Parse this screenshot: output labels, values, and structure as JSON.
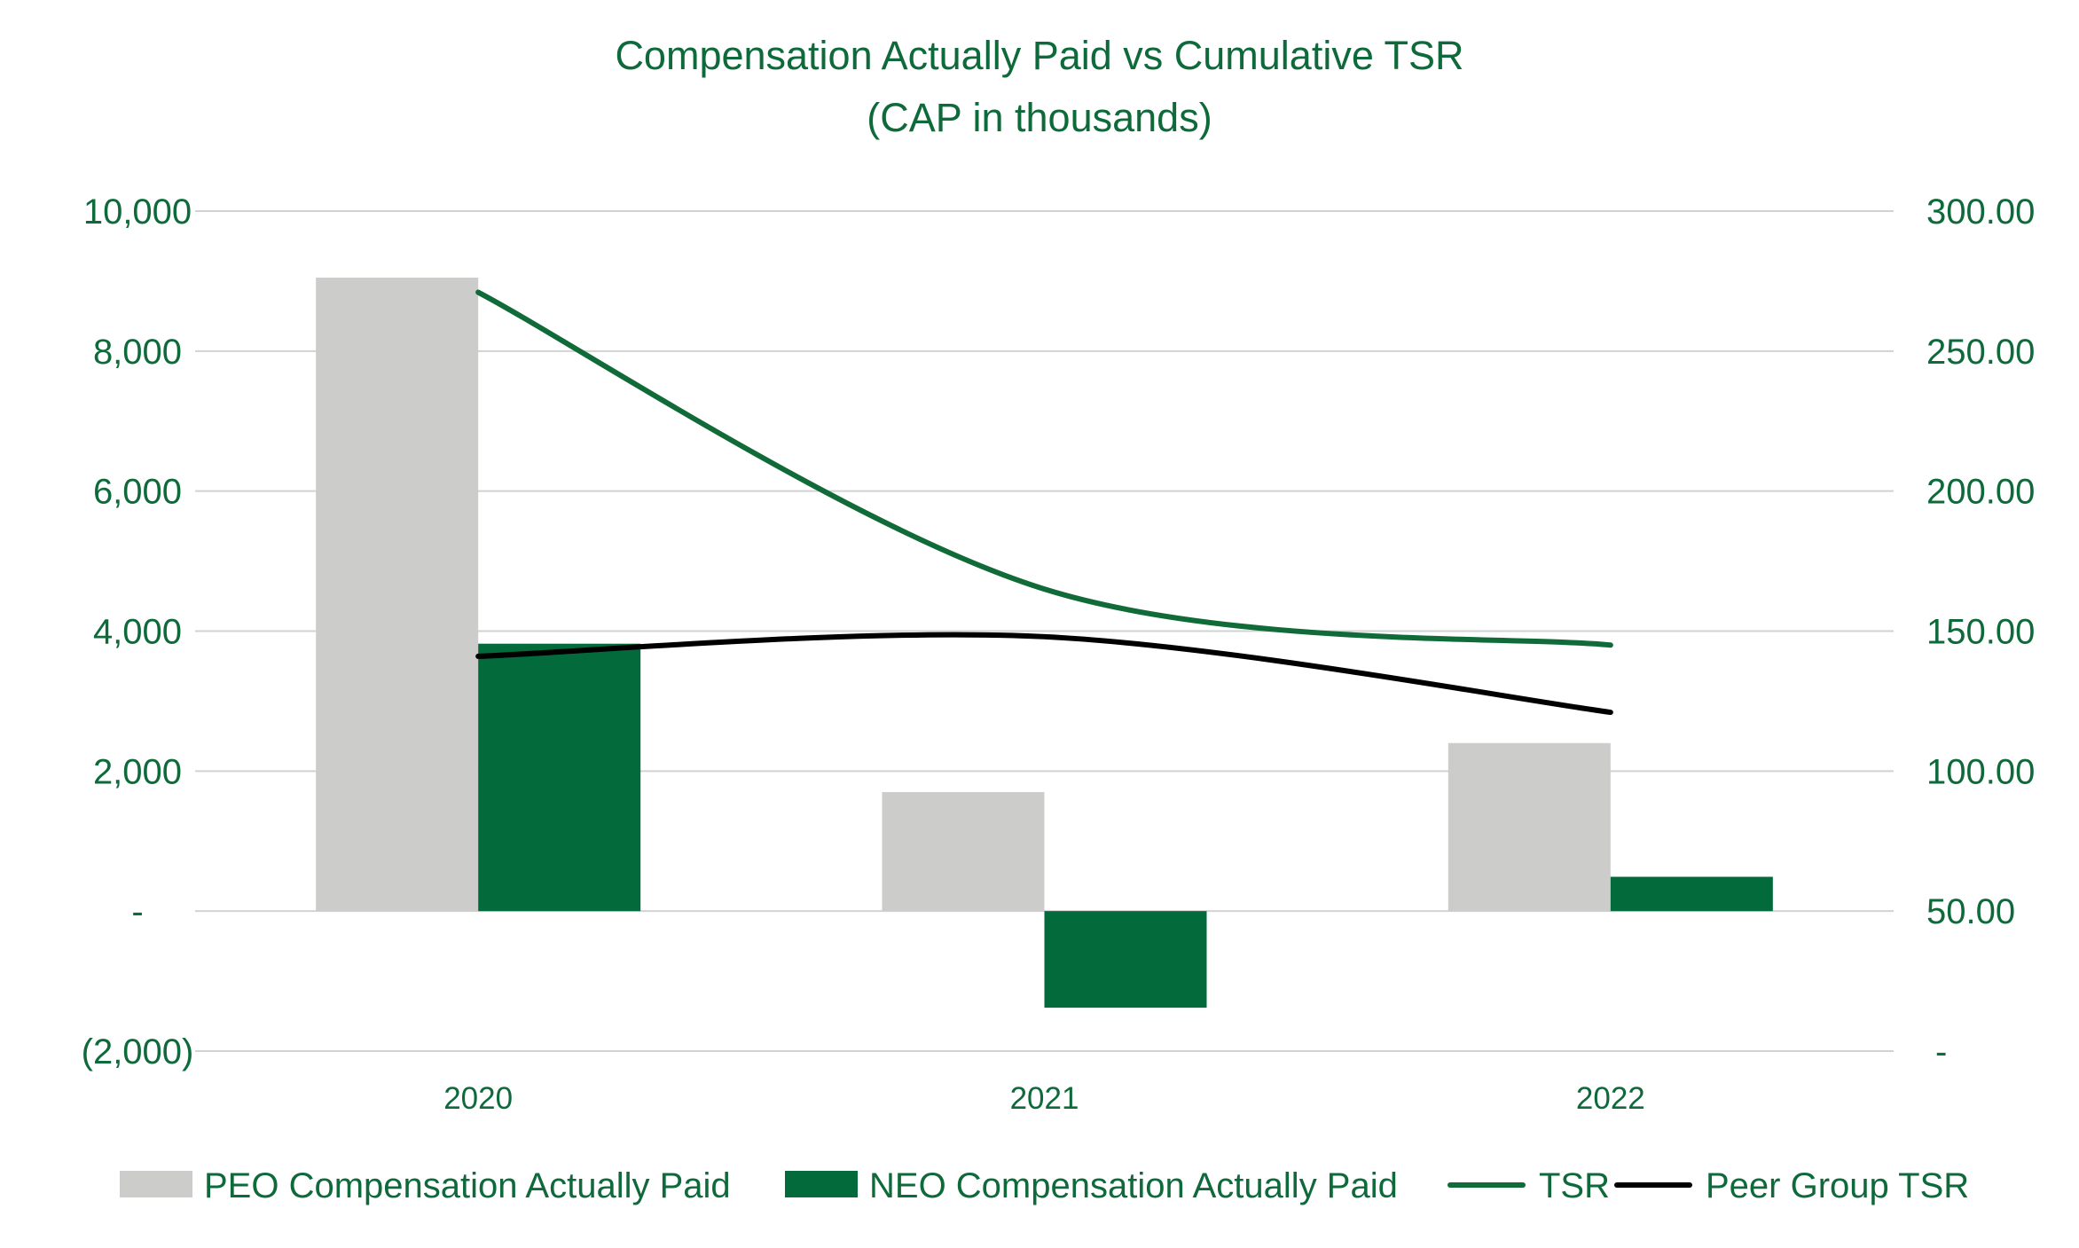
{
  "chart_data": {
    "type": "bar",
    "title": "Compensation Actually Paid vs Cumulative TSR",
    "subtitle": "(CAP in thousands)",
    "categories": [
      "2020",
      "2021",
      "2022"
    ],
    "series": [
      {
        "name": "PEO Compensation Actually Paid",
        "kind": "bar",
        "axis": "left",
        "color": "#cccccb",
        "values": [
          9050,
          1700,
          2400
        ]
      },
      {
        "name": "NEO Compensation Actually Paid",
        "kind": "bar",
        "axis": "left",
        "color": "#036b3b",
        "values": [
          3820,
          -1380,
          490
        ]
      },
      {
        "name": "TSR",
        "kind": "line",
        "axis": "right",
        "color": "#106b38",
        "values": [
          271,
          165,
          145
        ]
      },
      {
        "name": "Peer Group TSR",
        "kind": "line",
        "axis": "right",
        "color": "#000000",
        "values": [
          141,
          148,
          121
        ]
      }
    ],
    "left_axis": {
      "min": -2000,
      "max": 10000,
      "ticks": [
        -2000,
        0,
        2000,
        4000,
        6000,
        8000,
        10000
      ],
      "tick_labels": [
        "(2,000)",
        "-",
        "2,000",
        "4,000",
        "6,000",
        "8,000",
        "10,000"
      ]
    },
    "right_axis": {
      "min": 0,
      "max": 300,
      "ticks": [
        0,
        50,
        100,
        150,
        200,
        250,
        300
      ],
      "tick_labels": [
        "-",
        "50.00",
        "100.00",
        "150.00",
        "200.00",
        "250.00",
        "300.00"
      ]
    },
    "grid": true,
    "legend_position": "bottom"
  }
}
